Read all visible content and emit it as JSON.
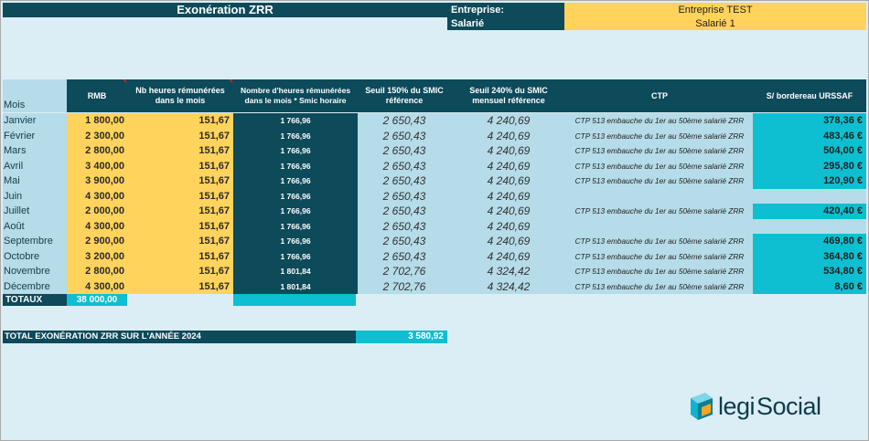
{
  "header": {
    "title": "Exonération ZRR",
    "entreprise_label": "Entreprise:",
    "entreprise_value": "Entreprise TEST",
    "salarie_label": "Salarié",
    "salarie_value": "Salarié 1"
  },
  "columns": {
    "mois": "Mois",
    "rmb": "RMB",
    "heures": "Nb heures rémunérées dans le mois",
    "nb_heures_smic": "Nombre d'heures rémunérées dans le mois * Smic horaire",
    "seuil150": "Seuil 150% du SMIC référence",
    "seuil240": "Seuil 240% du SMIC mensuel référence",
    "ctp": "CTP",
    "urssaf": "S/ bordereau URSSAF"
  },
  "rows": [
    {
      "mois": "Janvier",
      "rmb": "1 800,00",
      "heures": "151,67",
      "nbh": "1 766,96",
      "s150": "2 650,43",
      "s240": "4 240,69",
      "ctp": "CTP 513 embauche du 1er  au 50ème salarié ZRR",
      "urs": "378,36 €"
    },
    {
      "mois": "Février",
      "rmb": "2 300,00",
      "heures": "151,67",
      "nbh": "1 766,96",
      "s150": "2 650,43",
      "s240": "4 240,69",
      "ctp": "CTP 513 embauche du 1er  au 50ème salarié ZRR",
      "urs": "483,46 €"
    },
    {
      "mois": "Mars",
      "rmb": "2 800,00",
      "heures": "151,67",
      "nbh": "1 766,96",
      "s150": "2 650,43",
      "s240": "4 240,69",
      "ctp": "CTP 513 embauche du 1er  au 50ème salarié ZRR",
      "urs": "504,00 €"
    },
    {
      "mois": "Avril",
      "rmb": "3 400,00",
      "heures": "151,67",
      "nbh": "1 766,96",
      "s150": "2 650,43",
      "s240": "4 240,69",
      "ctp": "CTP 513 embauche du 1er  au 50ème salarié ZRR",
      "urs": "295,80 €"
    },
    {
      "mois": "Mai",
      "rmb": "3 900,00",
      "heures": "151,67",
      "nbh": "1 766,96",
      "s150": "2 650,43",
      "s240": "4 240,69",
      "ctp": "CTP 513 embauche du 1er  au 50ème salarié ZRR",
      "urs": "120,90 €"
    },
    {
      "mois": "Juin",
      "rmb": "4 300,00",
      "heures": "151,67",
      "nbh": "1 766,96",
      "s150": "2 650,43",
      "s240": "4 240,69",
      "ctp": "",
      "urs": ""
    },
    {
      "mois": "Juillet",
      "rmb": "2 000,00",
      "heures": "151,67",
      "nbh": "1 766,96",
      "s150": "2 650,43",
      "s240": "4 240,69",
      "ctp": "CTP 513 embauche du 1er  au 50ème salarié ZRR",
      "urs": "420,40 €"
    },
    {
      "mois": "Août",
      "rmb": "4 300,00",
      "heures": "151,67",
      "nbh": "1 766,96",
      "s150": "2 650,43",
      "s240": "4 240,69",
      "ctp": "",
      "urs": ""
    },
    {
      "mois": "Septembre",
      "rmb": "2 900,00",
      "heures": "151,67",
      "nbh": "1 766,96",
      "s150": "2 650,43",
      "s240": "4 240,69",
      "ctp": "CTP 513 embauche du 1er  au 50ème salarié ZRR",
      "urs": "469,80 €"
    },
    {
      "mois": "Octobre",
      "rmb": "3 200,00",
      "heures": "151,67",
      "nbh": "1 766,96",
      "s150": "2 650,43",
      "s240": "4 240,69",
      "ctp": "CTP 513 embauche du 1er  au 50ème salarié ZRR",
      "urs": "364,80 €"
    },
    {
      "mois": "Novembre",
      "rmb": "2 800,00",
      "heures": "151,67",
      "nbh": "1 801,84",
      "s150": "2 702,76",
      "s240": "4 324,42",
      "ctp": "CTP 513 embauche du 1er  au 50ème salarié ZRR",
      "urs": "534,80 €"
    },
    {
      "mois": "Décembre",
      "rmb": "4 300,00",
      "heures": "151,67",
      "nbh": "1 801,84",
      "s150": "2 702,76",
      "s240": "4 324,42",
      "ctp": "CTP 513 embauche du 1er  au 50ème salarié ZRR",
      "urs": "8,60 €"
    }
  ],
  "totaux": {
    "label": "TOTAUX",
    "rmb": "38 000,00"
  },
  "total_annee": {
    "label": "TOTAL EXONÉRATION ZRR SUR L'ANNÉE 2024",
    "value": "3 580,92"
  },
  "logo": {
    "text_legi": "legi",
    "text_social": "Social",
    "icon": "legisocial-cube-icon",
    "colors": {
      "cube_front": "#0fb3cf",
      "cube_side": "#f5a623",
      "text": "#0d3b4a"
    }
  }
}
